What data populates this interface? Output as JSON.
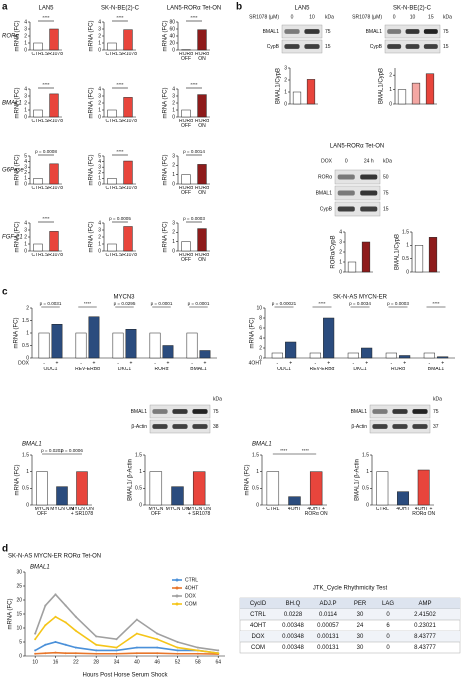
{
  "panels": [
    "a",
    "b",
    "c",
    "d"
  ],
  "chart_data": [
    {
      "type": "bar",
      "title": "LAN5",
      "gene": "RORα",
      "ylabel": "mRNA (FC)",
      "categories": [
        "CTRL",
        "SR1078"
      ],
      "values": [
        1,
        3
      ],
      "colors": [
        "#ffffff",
        "#e8453c"
      ],
      "ylim": [
        0,
        4
      ],
      "yticks": [
        0,
        1,
        2,
        3,
        4
      ],
      "annotations": [
        "****"
      ]
    },
    {
      "type": "bar",
      "title": "SK-N-BE(2)-C",
      "ylabel": "mRNA (FC)",
      "categories": [
        "CTRL",
        "SR1078"
      ],
      "values": [
        1,
        2.9
      ],
      "colors": [
        "#ffffff",
        "#e8453c"
      ],
      "ylim": [
        0,
        4
      ],
      "yticks": [
        0,
        1,
        2,
        3,
        4
      ],
      "annotations": [
        "****"
      ]
    },
    {
      "type": "bar",
      "title": "LAN5-RORα Tet-ON",
      "ylabel": "mRNA (FC)",
      "categories": [
        "RORα OFF",
        "RORα ON"
      ],
      "values": [
        1,
        58
      ],
      "colors": [
        "#ffffff",
        "#8e1b1b"
      ],
      "ylim": [
        0,
        80
      ],
      "yticks": [
        0,
        20,
        40,
        60,
        80
      ],
      "annotations": [
        "****"
      ]
    },
    {
      "type": "bar",
      "gene": "BMAL1",
      "ylabel": "mRNA (FC)",
      "categories": [
        "CTRL",
        "SR1078"
      ],
      "values": [
        1,
        3.3
      ],
      "colors": [
        "#ffffff",
        "#e8453c"
      ],
      "ylim": [
        0,
        4
      ],
      "yticks": [
        0,
        1,
        2,
        3,
        4
      ],
      "annotations": [
        "****"
      ]
    },
    {
      "type": "bar",
      "ylabel": "mRNA (FC)",
      "categories": [
        "CTRL",
        "SR1078"
      ],
      "values": [
        1,
        2.8
      ],
      "colors": [
        "#ffffff",
        "#e8453c"
      ],
      "ylim": [
        0,
        4
      ],
      "yticks": [
        0,
        1,
        2,
        3,
        4
      ],
      "annotations": [
        "****"
      ]
    },
    {
      "type": "bar",
      "ylabel": "mRNA (FC)",
      "categories": [
        "RORα OFF",
        "RORα ON"
      ],
      "values": [
        1,
        3.2
      ],
      "colors": [
        "#ffffff",
        "#8e1b1b"
      ],
      "ylim": [
        0,
        4
      ],
      "yticks": [
        0,
        1,
        2,
        3,
        4
      ],
      "annotations": [
        "****"
      ]
    },
    {
      "type": "bar",
      "gene": "G6Pase",
      "ylabel": "mRNA (FC)",
      "categories": [
        "CTRL",
        "SR1078"
      ],
      "values": [
        1,
        3.6
      ],
      "colors": [
        "#ffffff",
        "#e8453c"
      ],
      "ylim": [
        0,
        5
      ],
      "yticks": [
        0,
        1,
        2,
        3,
        4,
        5
      ],
      "annotations": [
        "p = 0.0008"
      ]
    },
    {
      "type": "bar",
      "ylabel": "mRNA (FC)",
      "categories": [
        "CTRL",
        "SR1078"
      ],
      "values": [
        1,
        4.1
      ],
      "colors": [
        "#ffffff",
        "#e8453c"
      ],
      "ylim": [
        0,
        5
      ],
      "yticks": [
        0,
        1,
        2,
        3,
        4,
        5
      ],
      "annotations": [
        "****"
      ]
    },
    {
      "type": "bar",
      "ylabel": "mRNA (FC)",
      "categories": [
        "RORα OFF",
        "RORα ON"
      ],
      "values": [
        1,
        2.1
      ],
      "colors": [
        "#ffffff",
        "#8e1b1b"
      ],
      "ylim": [
        0,
        3
      ],
      "yticks": [
        0,
        1,
        2,
        3
      ],
      "annotations": [
        "p = 0.0014"
      ]
    },
    {
      "type": "bar",
      "gene": "FGF-21",
      "ylabel": "mRNA (FC)",
      "categories": [
        "CTRL",
        "SR1078"
      ],
      "values": [
        1,
        2.8
      ],
      "colors": [
        "#ffffff",
        "#e8453c"
      ],
      "ylim": [
        0,
        4
      ],
      "yticks": [
        0,
        1,
        2,
        3,
        4
      ],
      "annotations": [
        "****"
      ]
    },
    {
      "type": "bar",
      "ylabel": "mRNA (FC)",
      "categories": [
        "CTRL",
        "SR1078"
      ],
      "values": [
        1,
        3.5
      ],
      "colors": [
        "#ffffff",
        "#e8453c"
      ],
      "ylim": [
        0,
        4
      ],
      "yticks": [
        0,
        1,
        2,
        3,
        4
      ],
      "annotations": [
        "p = 0.0005"
      ]
    },
    {
      "type": "bar",
      "ylabel": "mRNA (FC)",
      "categories": [
        "RORα OFF",
        "RORα ON"
      ],
      "values": [
        1,
        2.4
      ],
      "colors": [
        "#ffffff",
        "#8e1b1b"
      ],
      "ylim": [
        0,
        3
      ],
      "yticks": [
        0,
        1,
        2,
        3
      ],
      "annotations": [
        "p = 0.0003"
      ]
    },
    {
      "type": "bar",
      "ylabel": "BMAL1/CypB",
      "values": [
        1,
        2.05
      ],
      "colors": [
        "#ffffff",
        "#e8453c"
      ],
      "ylim": [
        0,
        3
      ],
      "yticks": [
        0,
        1,
        2,
        3
      ]
    },
    {
      "type": "bar",
      "ylabel": "BMAL1/CypB",
      "values": [
        1,
        1.45,
        2.1
      ],
      "colors": [
        "#ffffff",
        "#f4a7a3",
        "#e8453c"
      ],
      "ylim": [
        0,
        2.5
      ],
      "yticks": [
        0,
        1,
        2
      ]
    },
    {
      "type": "bar",
      "ylabel": "RORα/CypB",
      "values": [
        1,
        3
      ],
      "colors": [
        "#ffffff",
        "#8e1b1b"
      ],
      "ylim": [
        0,
        4
      ],
      "yticks": [
        0,
        1,
        2,
        3,
        4
      ]
    },
    {
      "type": "bar",
      "ylabel": "BMAL1/CypB",
      "values": [
        1,
        1.3
      ],
      "colors": [
        "#ffffff",
        "#8e1b1b"
      ],
      "ylim": [
        0,
        1.5
      ],
      "yticks": [
        0,
        0.5,
        1,
        1.5
      ]
    },
    {
      "type": "bar",
      "title": "MYCN3",
      "ylabel": "mRNA (FC)",
      "treatment": "DOX",
      "categories": [
        "ODC1",
        "REV-ERBα",
        "DKC1",
        "RORα",
        "BMAL1"
      ],
      "series": [
        {
          "name": "-",
          "color": "#ffffff",
          "values": [
            1,
            1,
            1,
            1,
            1
          ]
        },
        {
          "name": "+",
          "color": "#2b4c7e",
          "values": [
            1.35,
            1.65,
            1.15,
            0.5,
            0.3
          ]
        }
      ],
      "ylim": [
        0,
        2
      ],
      "yticks": [
        0,
        0.5,
        1,
        1.5,
        2
      ],
      "annotations": [
        "p = 0.0031",
        "****",
        "p = 0.0295",
        "p = 0.0001",
        "p = 0.0001"
      ]
    },
    {
      "type": "bar",
      "title": "SK-N-AS MYCN-ER",
      "ylabel": "mRNA (FC)",
      "treatment": "4OHT",
      "categories": [
        "ODC1",
        "REV-ERBα",
        "DKC1",
        "RORα",
        "BMAL1"
      ],
      "series": [
        {
          "name": "-",
          "color": "#ffffff",
          "values": [
            1,
            1,
            1,
            1,
            1
          ]
        },
        {
          "name": "+",
          "color": "#2b4c7e",
          "values": [
            3.2,
            8,
            2,
            0.5,
            0.25
          ]
        }
      ],
      "ylim": [
        0,
        10
      ],
      "yticks": [
        0,
        2,
        4,
        6,
        8,
        10
      ],
      "annotations": [
        "p = 0.00021",
        "****",
        "p = 0.0034",
        "p = 0.0003",
        "****"
      ]
    },
    {
      "type": "bar",
      "title": "BMAL1",
      "ylabel": "mRNA (FC)",
      "categories": [
        "MYCN OFF",
        "MYCN ON",
        "MYCN ON + SR1078"
      ],
      "values": [
        1,
        0.55,
        1
      ],
      "colors": [
        "#ffffff",
        "#2b4c7e",
        "#e8453c"
      ],
      "ylim": [
        0,
        1.5
      ],
      "yticks": [
        0,
        0.5,
        1,
        1.5
      ],
      "annotations": [
        "p = 0.0202",
        "p = 0.0006"
      ]
    },
    {
      "type": "bar",
      "ylabel": "BMAL1/ β-Actin",
      "categories": [
        "MYCN OFF",
        "MYCN ON",
        "MYCN ON + SR1078"
      ],
      "values": [
        1,
        0.55,
        1
      ],
      "colors": [
        "#ffffff",
        "#2b4c7e",
        "#e8453c"
      ],
      "ylim": [
        0,
        1.5
      ],
      "yticks": [
        0,
        0.5,
        1,
        1.5
      ]
    },
    {
      "type": "bar",
      "title": "BMAL1",
      "ylabel": "mRNA (FC)",
      "categories": [
        "CTRL",
        "4OHT",
        "4OHT + RORα ON"
      ],
      "values": [
        1,
        0.25,
        1
      ],
      "colors": [
        "#ffffff",
        "#2b4c7e",
        "#e8453c"
      ],
      "ylim": [
        0,
        1.5
      ],
      "yticks": [
        0,
        0.5,
        1,
        1.5
      ],
      "annotations": [
        "****",
        "****"
      ]
    },
    {
      "type": "bar",
      "ylabel": "BMAL1/ β-Actin",
      "categories": [
        "CTRL",
        "4OHT",
        "4OHT + RORα ON"
      ],
      "values": [
        1,
        0.4,
        1.05
      ],
      "colors": [
        "#ffffff",
        "#2b4c7e",
        "#e8453c"
      ],
      "ylim": [
        0,
        1.5
      ],
      "yticks": [
        0,
        0.5,
        1,
        1.5
      ]
    },
    {
      "type": "line",
      "title": "SK-N-AS MYCN-ER RORα Tet-ON",
      "subtitle": "BMAL1",
      "xlabel": "Hours Post Horse Serum Shock",
      "ylabel": "mRNA (FC)",
      "x": [
        10,
        13,
        16,
        19,
        22,
        28,
        34,
        40,
        46,
        52,
        58,
        64
      ],
      "xlim": [
        7,
        66
      ],
      "xticks": [
        10,
        16,
        22,
        28,
        34,
        40,
        46,
        52,
        58,
        64
      ],
      "ylim": [
        0,
        30
      ],
      "yticks": [
        0,
        5,
        10,
        15,
        20,
        25,
        30
      ],
      "legend": "top-right",
      "series": [
        {
          "name": "CTRL",
          "color": "#4a90d9",
          "values": [
            2,
            4,
            5,
            4,
            3,
            2,
            2,
            3,
            3,
            2,
            2,
            1
          ]
        },
        {
          "name": "4OHT",
          "color": "#e8762b",
          "values": [
            0.8,
            1,
            1.2,
            1,
            1,
            0.8,
            0.8,
            1,
            1,
            0.8,
            0.8,
            0.7
          ]
        },
        {
          "name": "DOX",
          "color": "#a0a0a0",
          "values": [
            8,
            18,
            22,
            18,
            14,
            7,
            6,
            13,
            8,
            5,
            3,
            2
          ]
        },
        {
          "name": "COM",
          "color": "#f5c518",
          "values": [
            6,
            11,
            14,
            12,
            9,
            4,
            3,
            8,
            6,
            3,
            2,
            1
          ]
        }
      ]
    }
  ],
  "blots": [
    {
      "title": "LAN5",
      "treatment": "SR1078 (µM)",
      "lanes": [
        "0",
        "10"
      ],
      "unit": "kDa",
      "proteins": [
        "BMAL1",
        "CypB"
      ],
      "markers": [
        "75",
        "15"
      ]
    },
    {
      "title": "SK-N-BE(2)-C",
      "treatment": "SR1078 (µM)",
      "lanes": [
        "0",
        "10",
        "15"
      ],
      "unit": "kDa",
      "proteins": [
        "BMAL1",
        "CypB"
      ],
      "markers": [
        "75",
        "15"
      ]
    },
    {
      "title": "LAN5-RORα Tet-ON",
      "treatment": "DOX",
      "lanes": [
        "0",
        "24 h"
      ],
      "unit": "kDa",
      "proteins": [
        "RORα",
        "BMAL1",
        "CypB"
      ],
      "markers": [
        "50",
        "75",
        "15"
      ]
    },
    {
      "unit": "kDa",
      "proteins": [
        "BMAL1",
        "β-Actin"
      ],
      "markers": [
        "75",
        "38"
      ]
    },
    {
      "unit": "kDa",
      "proteins": [
        "BMAL1",
        "β-Actin"
      ],
      "markers": [
        "75",
        "37"
      ]
    }
  ],
  "table": {
    "title": "JTK_Cycle Rhythmicity Test",
    "header": [
      "CycID",
      "BH.Q",
      "ADJ.P",
      "PER",
      "LAG",
      "AMP"
    ],
    "rows": [
      [
        "CTRL",
        "0.0228",
        "0.0114",
        "30",
        "0",
        "2.41502"
      ],
      [
        "4OHT",
        "0.00348",
        "0.00057",
        "24",
        "6",
        "0.23021"
      ],
      [
        "DOX",
        "0.00348",
        "0.00131",
        "30",
        "0",
        "8.43777"
      ],
      [
        "COM",
        "0.00348",
        "0.00131",
        "30",
        "0",
        "8.43777"
      ]
    ]
  }
}
